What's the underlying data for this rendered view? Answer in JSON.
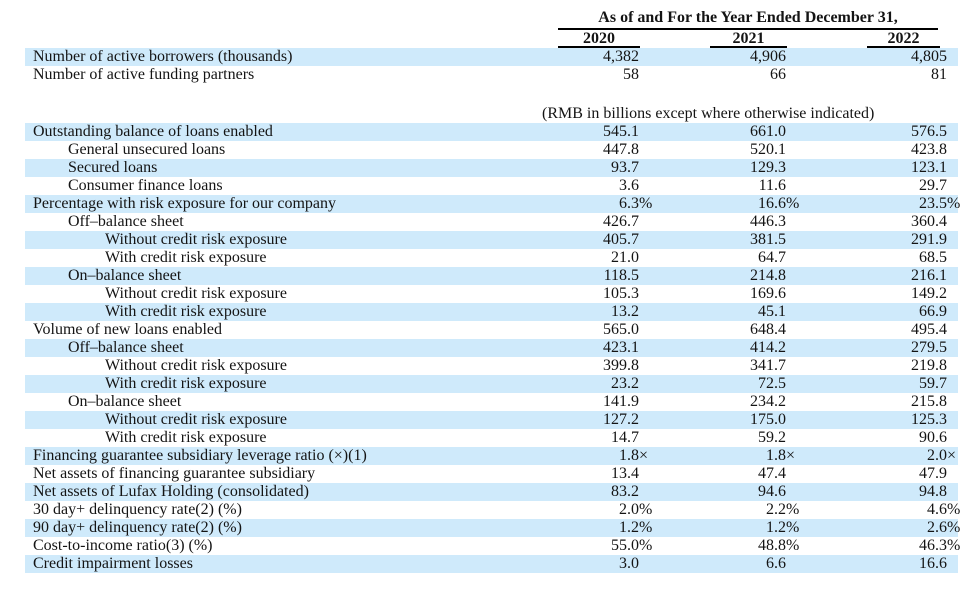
{
  "title": "As of and For the Year Ended December 31,",
  "columns": [
    "2020",
    "2021",
    "2022"
  ],
  "units_note": "(RMB in billions except where otherwise indicated)",
  "colors": {
    "row_highlight": "#cfeafb",
    "text": "#141414",
    "rule": "#000000"
  },
  "top_rows": [
    {
      "label": "Number of active borrowers (thousands)",
      "indent": 0,
      "highlight": true,
      "values": [
        "4,382",
        "4,906",
        "4,805"
      ]
    },
    {
      "label": "Number of active funding partners",
      "indent": 0,
      "highlight": false,
      "values": [
        "58",
        "66",
        "81"
      ]
    }
  ],
  "rows": [
    {
      "label": "Outstanding balance of loans enabled",
      "indent": 0,
      "highlight": true,
      "values": [
        "545.1",
        "661.0",
        "576.5"
      ]
    },
    {
      "label": "General unsecured loans",
      "indent": 1,
      "highlight": false,
      "values": [
        "447.8",
        "520.1",
        "423.8"
      ]
    },
    {
      "label": "Secured loans",
      "indent": 1,
      "highlight": true,
      "values": [
        "93.7",
        "129.3",
        "123.1"
      ]
    },
    {
      "label": "Consumer finance loans",
      "indent": 1,
      "highlight": false,
      "values": [
        "3.6",
        "11.6",
        "29.7"
      ]
    },
    {
      "label": "Percentage with risk exposure for our company",
      "indent": 0,
      "highlight": true,
      "values": [
        "6.3%",
        "16.6%",
        "23.5%"
      ]
    },
    {
      "label": "Off–balance sheet",
      "indent": 1,
      "highlight": false,
      "values": [
        "426.7",
        "446.3",
        "360.4"
      ]
    },
    {
      "label": "Without credit risk exposure",
      "indent": 2,
      "highlight": true,
      "values": [
        "405.7",
        "381.5",
        "291.9"
      ]
    },
    {
      "label": "With credit risk exposure",
      "indent": 2,
      "highlight": false,
      "values": [
        "21.0",
        "64.7",
        "68.5"
      ]
    },
    {
      "label": "On–balance sheet",
      "indent": 1,
      "highlight": true,
      "values": [
        "118.5",
        "214.8",
        "216.1"
      ]
    },
    {
      "label": "Without credit risk exposure",
      "indent": 2,
      "highlight": false,
      "values": [
        "105.3",
        "169.6",
        "149.2"
      ]
    },
    {
      "label": "With credit risk exposure",
      "indent": 2,
      "highlight": true,
      "values": [
        "13.2",
        "45.1",
        "66.9"
      ]
    },
    {
      "label": "Volume of new loans enabled",
      "indent": 0,
      "highlight": false,
      "values": [
        "565.0",
        "648.4",
        "495.4"
      ]
    },
    {
      "label": "Off–balance sheet",
      "indent": 1,
      "highlight": true,
      "values": [
        "423.1",
        "414.2",
        "279.5"
      ]
    },
    {
      "label": "Without credit risk exposure",
      "indent": 2,
      "highlight": false,
      "values": [
        "399.8",
        "341.7",
        "219.8"
      ]
    },
    {
      "label": "With credit risk exposure",
      "indent": 2,
      "highlight": true,
      "values": [
        "23.2",
        "72.5",
        "59.7"
      ]
    },
    {
      "label": "On–balance sheet",
      "indent": 1,
      "highlight": false,
      "values": [
        "141.9",
        "234.2",
        "215.8"
      ]
    },
    {
      "label": "Without credit risk exposure",
      "indent": 2,
      "highlight": true,
      "values": [
        "127.2",
        "175.0",
        "125.3"
      ]
    },
    {
      "label": "With credit risk exposure",
      "indent": 2,
      "highlight": false,
      "values": [
        "14.7",
        "59.2",
        "90.6"
      ]
    },
    {
      "label": "Financing guarantee subsidiary leverage ratio (×)(1)",
      "indent": 0,
      "highlight": true,
      "values": [
        "1.8×",
        "1.8×",
        "2.0×"
      ]
    },
    {
      "label": "Net assets of financing guarantee subsidiary",
      "indent": 0,
      "highlight": false,
      "values": [
        "13.4",
        "47.4",
        "47.9"
      ]
    },
    {
      "label": "Net assets of Lufax Holding (consolidated)",
      "indent": 0,
      "highlight": true,
      "values": [
        "83.2",
        "94.6",
        "94.8"
      ]
    },
    {
      "label": "30 day+ delinquency rate(2) (%)",
      "indent": 0,
      "highlight": false,
      "values": [
        "2.0%",
        "2.2%",
        "4.6%"
      ]
    },
    {
      "label": "90 day+ delinquency rate(2) (%)",
      "indent": 0,
      "highlight": true,
      "values": [
        "1.2%",
        "1.2%",
        "2.6%"
      ]
    },
    {
      "label": "Cost-to-income ratio(3) (%)",
      "indent": 0,
      "highlight": false,
      "values": [
        "55.0%",
        "48.8%",
        "46.3%"
      ]
    },
    {
      "label": "Credit impairment losses",
      "indent": 0,
      "highlight": true,
      "values": [
        "3.0",
        "6.6",
        "16.6"
      ]
    }
  ]
}
